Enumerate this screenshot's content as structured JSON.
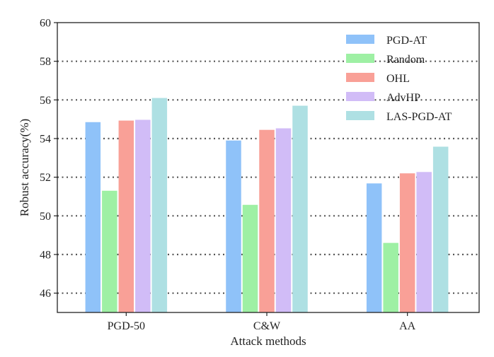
{
  "chart_data": {
    "type": "bar",
    "title": "",
    "xlabel": "Attack methods",
    "ylabel": "Robust accuracy(%)",
    "ylim": [
      45,
      60
    ],
    "yticks": [
      46,
      48,
      50,
      52,
      54,
      56,
      58,
      60
    ],
    "grid": "horizontal dotted",
    "legend_position": "top-right",
    "categories": [
      "PGD-50",
      "C&W",
      "AA"
    ],
    "series": [
      {
        "name": "PGD-AT",
        "color": "#8fc2f9",
        "values": [
          54.85,
          53.9,
          51.68
        ]
      },
      {
        "name": "Random",
        "color": "#9ef0a4",
        "values": [
          51.3,
          50.57,
          48.6
        ]
      },
      {
        "name": "OHL",
        "color": "#f9a097",
        "values": [
          54.93,
          54.45,
          52.2
        ]
      },
      {
        "name": "AdvHP",
        "color": "#d1bcf7",
        "values": [
          54.97,
          54.53,
          52.27
        ]
      },
      {
        "name": "LAS-PGD-AT",
        "color": "#aee0e3",
        "values": [
          56.1,
          55.7,
          53.58
        ]
      }
    ]
  }
}
